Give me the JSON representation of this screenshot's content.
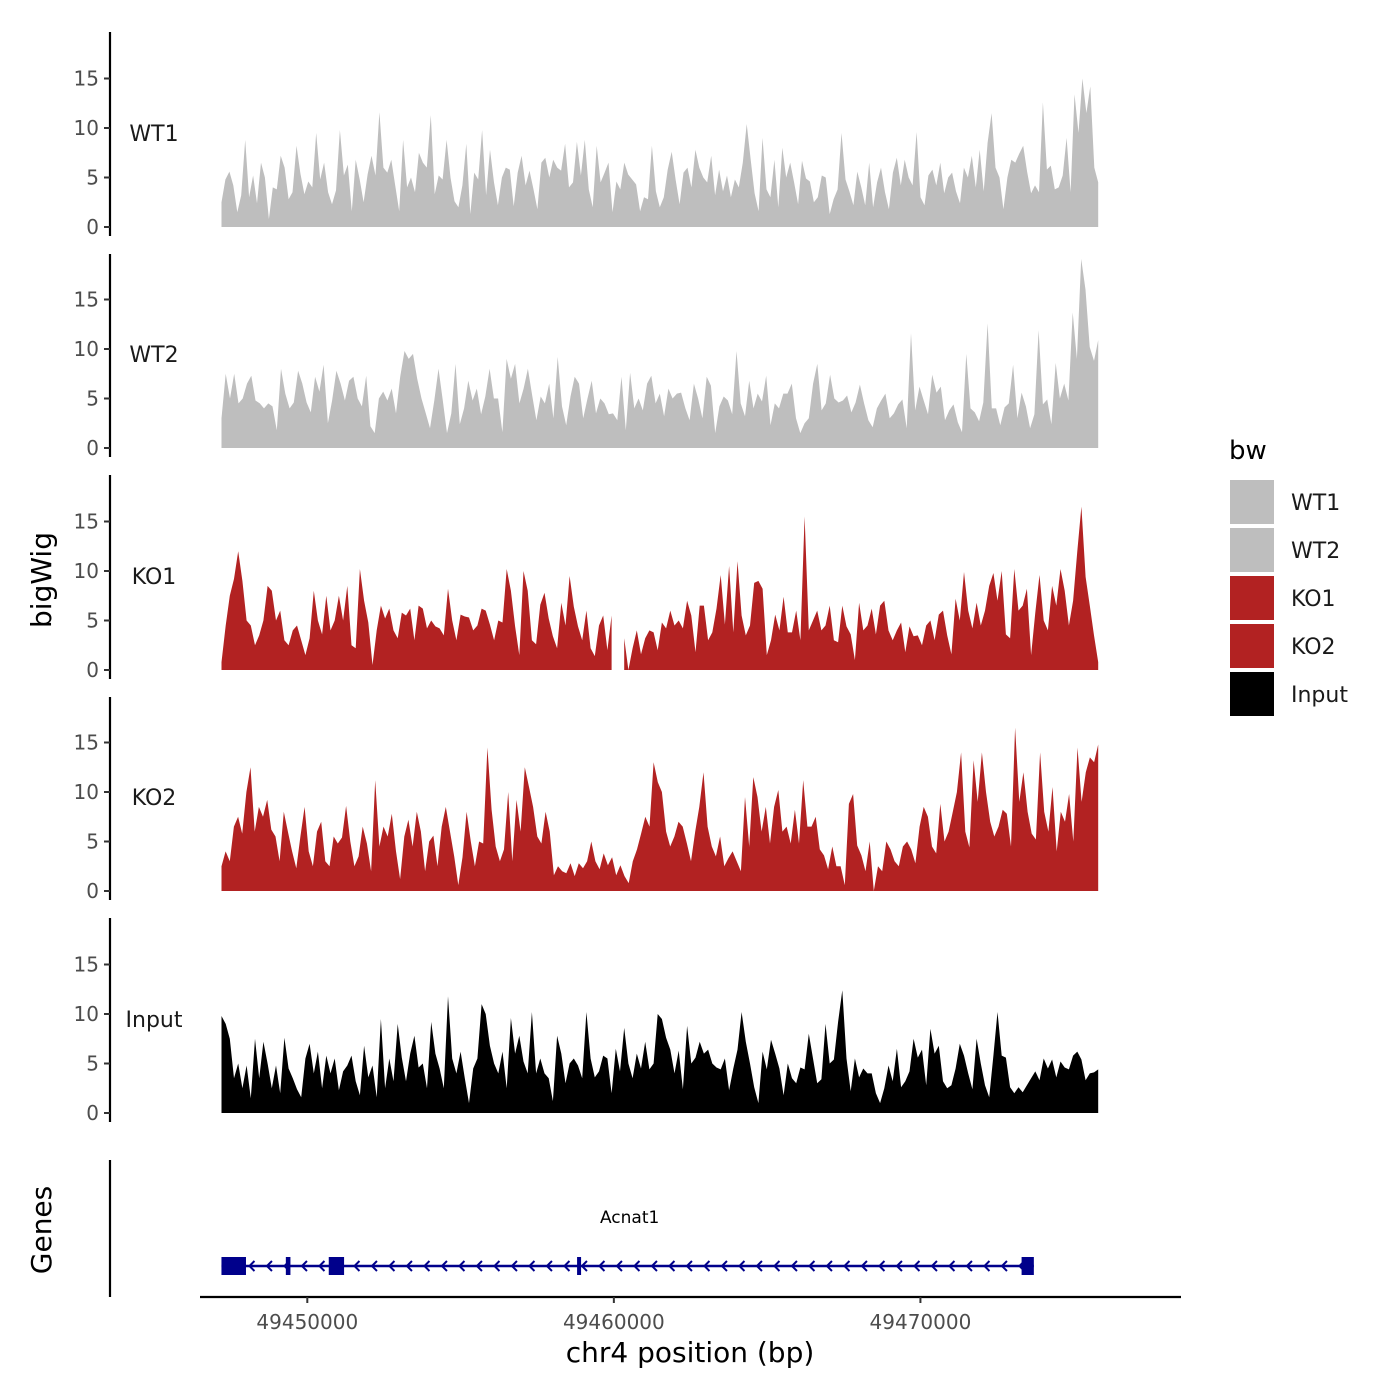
{
  "chart_data": {
    "type": "area",
    "title": "",
    "xlabel": "chr4 position (bp)",
    "ylabel": "bigWig",
    "xlim": [
      49446500,
      49478500
    ],
    "ylim": [
      0,
      20
    ],
    "x_ticks": [
      49450000,
      49460000,
      49470000
    ],
    "x_tick_labels": [
      "49450000",
      "49460000",
      "49470000"
    ],
    "y_ticks": [
      0,
      5,
      10,
      15
    ],
    "y_tick_labels": [
      "0",
      "5",
      "10",
      "15"
    ],
    "data_range": [
      49447200,
      49475800
    ],
    "grid": false,
    "legend": {
      "title": "bw",
      "position": "right",
      "entries": [
        {
          "label": "WT1",
          "color": "#BEBEBE"
        },
        {
          "label": "WT2",
          "color": "#BEBEBE"
        },
        {
          "label": "KO1",
          "color": "#B22222"
        },
        {
          "label": "KO2",
          "color": "#B22222"
        },
        {
          "label": "Input",
          "color": "#000000"
        }
      ]
    },
    "series": [
      {
        "name": "WT1",
        "color": "#BEBEBE",
        "gap": null,
        "values": [
          2.5,
          4.8,
          5.6,
          4.2,
          1.5,
          3.2,
          8.8,
          3.0,
          5.2,
          2.4,
          6.5,
          5.0,
          0.8,
          4.0,
          3.8,
          7.2,
          6.0,
          2.8,
          3.5,
          8.2,
          5.4,
          3.3,
          4.6,
          4.0,
          9.5,
          4.8,
          6.5,
          3.5,
          2.3,
          3.7,
          9.8,
          5.2,
          6.3,
          1.6,
          6.8,
          4.8,
          2.5,
          5.3,
          7.2,
          5.2,
          11.6,
          6.0,
          5.5,
          6.8,
          4.2,
          1.6,
          8.8,
          4.0,
          5.0,
          3.5,
          7.5,
          6.5,
          6.0,
          11.3,
          3.3,
          5.2,
          4.8,
          8.8,
          5.0,
          2.6,
          2.0,
          4.2,
          8.4,
          1.3,
          5.5,
          4.8,
          9.8,
          3.2,
          7.8,
          4.5,
          2.2,
          5.0,
          6.0,
          5.8,
          2.1,
          5.5,
          7.2,
          4.2,
          5.7,
          3.8,
          1.8,
          6.5,
          7.0,
          5.0,
          6.8,
          6.0,
          5.7,
          8.4,
          4.0,
          4.5,
          8.6,
          5.2,
          8.8,
          3.8,
          2.0,
          8.2,
          4.5,
          5.5,
          6.5,
          1.5,
          4.6,
          3.8,
          6.5,
          5.3,
          4.8,
          4.3,
          1.6,
          3.0,
          2.8,
          8.2,
          3.6,
          2.0,
          3.0,
          5.8,
          7.6,
          4.8,
          2.3,
          5.5,
          6.0,
          4.0,
          7.8,
          6.0,
          5.0,
          4.5,
          7.2,
          3.2,
          5.8,
          3.6,
          5.2,
          3.0,
          4.8,
          4.0,
          6.5,
          10.4,
          6.8,
          3.4,
          1.6,
          9.0,
          3.8,
          3.0,
          6.8,
          2.0,
          8.0,
          5.0,
          6.5,
          4.5,
          2.3,
          6.7,
          4.9,
          4.6,
          2.5,
          3.0,
          5.2,
          5.0,
          1.3,
          2.8,
          3.8,
          9.5,
          4.8,
          3.6,
          2.2,
          5.6,
          4.0,
          2.2,
          6.5,
          2.0,
          4.5,
          6.0,
          3.5,
          1.8,
          5.5,
          7.0,
          4.2,
          6.8,
          5.0,
          4.2,
          9.6,
          3.0,
          2.2,
          5.2,
          5.8,
          4.2,
          6.5,
          3.4,
          5.0,
          5.5,
          3.6,
          2.4,
          6.0,
          5.0,
          7.2,
          4.0,
          7.8,
          3.6,
          8.5,
          11.5,
          6.0,
          5.0,
          1.8,
          5.0,
          6.8,
          6.5,
          7.4,
          8.2,
          5.6,
          3.4,
          4.2,
          3.5,
          12.6,
          5.8,
          6.2,
          3.8,
          4.0,
          5.2,
          9.0,
          3.5,
          13.4,
          9.5,
          15.0,
          11.5,
          14.2,
          6.0,
          4.5
        ]
      },
      {
        "name": "WT2",
        "color": "#BEBEBE",
        "gap": null,
        "values": [
          3.0,
          7.5,
          5.0,
          7.5,
          4.5,
          5.0,
          6.5,
          7.3,
          4.8,
          4.5,
          4.0,
          4.5,
          4.2,
          1.8,
          8.0,
          5.5,
          4.0,
          4.6,
          7.8,
          6.5,
          4.6,
          3.6,
          7.2,
          5.7,
          8.4,
          2.5,
          4.8,
          7.8,
          6.5,
          4.8,
          6.8,
          7.2,
          5.0,
          4.2,
          7.3,
          2.2,
          1.5,
          5.0,
          5.7,
          4.8,
          6.0,
          3.5,
          7.2,
          9.8,
          9.0,
          9.5,
          7.0,
          5.0,
          3.5,
          2.0,
          4.8,
          8.0,
          4.8,
          1.5,
          3.5,
          8.5,
          2.4,
          4.0,
          6.8,
          4.8,
          6.0,
          3.4,
          5.2,
          8.0,
          5.0,
          5.0,
          1.6,
          9.0,
          7.0,
          8.5,
          4.5,
          6.0,
          8.0,
          5.3,
          2.8,
          5.2,
          4.5,
          6.5,
          3.0,
          9.2,
          4.2,
          2.3,
          5.2,
          7.2,
          6.5,
          3.0,
          5.0,
          6.8,
          3.5,
          5.0,
          4.5,
          3.4,
          3.5,
          2.8,
          7.2,
          1.8,
          7.6,
          4.0,
          5.0,
          3.8,
          6.5,
          7.3,
          4.5,
          5.5,
          3.2,
          6.0,
          5.0,
          5.5,
          5.6,
          4.0,
          2.8,
          6.5,
          5.0,
          3.0,
          7.2,
          6.3,
          1.5,
          4.2,
          5.2,
          4.8,
          3.4,
          9.8,
          4.5,
          3.2,
          6.8,
          4.0,
          5.5,
          4.7,
          7.3,
          2.3,
          4.5,
          4.0,
          5.5,
          5.5,
          6.5,
          3.0,
          1.5,
          2.5,
          3.0,
          6.5,
          8.5,
          3.8,
          4.5,
          7.4,
          5.0,
          4.6,
          4.8,
          5.3,
          3.6,
          4.6,
          6.4,
          4.5,
          2.8,
          2.1,
          4.0,
          4.8,
          5.5,
          3.0,
          3.5,
          4.4,
          4.9,
          2.0,
          11.6,
          3.8,
          6.2,
          4.8,
          3.4,
          7.4,
          5.6,
          6.2,
          2.8,
          3.8,
          4.4,
          2.6,
          1.6,
          9.5,
          4.0,
          3.6,
          2.7,
          4.6,
          12.6,
          4.0,
          4.0,
          2.3,
          4.1,
          4.5,
          8.4,
          3.0,
          5.6,
          4.2,
          2.0,
          3.4,
          11.9,
          4.4,
          4.9,
          2.4,
          8.6,
          5.0,
          6.5,
          4.8,
          13.7,
          9.0,
          19.1,
          16.0,
          10.2,
          8.8,
          10.9
        ]
      },
      {
        "name": "KO1",
        "color": "#B22222",
        "gap": [
          49460000,
          49460300
        ],
        "values": [
          0.8,
          4.5,
          7.5,
          9.2,
          12.0,
          9.0,
          5.0,
          4.5,
          2.5,
          3.5,
          5.0,
          8.5,
          8.0,
          5.0,
          6.0,
          3.0,
          2.5,
          4.0,
          4.5,
          3.0,
          1.5,
          3.2,
          8.0,
          5.0,
          3.6,
          7.5,
          4.0,
          5.0,
          7.5,
          5.0,
          8.5,
          2.5,
          2.2,
          10.2,
          7.0,
          4.8,
          0.5,
          4.0,
          6.5,
          5.2,
          6.2,
          4.0,
          3.2,
          5.8,
          5.5,
          6.2,
          3.0,
          6.5,
          6.2,
          4.2,
          5.0,
          4.4,
          4.2,
          3.5,
          8.2,
          5.0,
          3.0,
          5.6,
          5.4,
          5.3,
          4.0,
          4.5,
          6.2,
          6.0,
          4.6,
          3.0,
          5.0,
          4.8,
          10.2,
          8.0,
          4.4,
          1.5,
          10.0,
          8.0,
          3.0,
          2.6,
          6.6,
          7.8,
          5.2,
          3.4,
          2.2,
          6.8,
          4.5,
          9.5,
          6.4,
          4.4,
          3.0,
          6.0,
          2.2,
          1.4,
          4.5,
          5.5,
          2.0,
          5.5,
          3.6,
          4.0,
          3.2,
          0.0,
          2.2,
          4.0,
          1.6,
          3.2,
          4.0,
          3.8,
          2.0,
          4.8,
          4.2,
          6.0,
          4.5,
          5.0,
          4.2,
          7.0,
          5.5,
          1.8,
          6.5,
          6.5,
          3.0,
          3.8,
          6.2,
          9.6,
          4.6,
          10.5,
          3.8,
          11.0,
          5.5,
          3.5,
          4.5,
          8.8,
          9.0,
          8.2,
          1.5,
          3.0,
          5.6,
          4.0,
          7.4,
          3.8,
          3.8,
          6.0,
          3.0,
          15.5,
          4.0,
          5.0,
          6.0,
          4.0,
          4.5,
          6.5,
          3.0,
          2.8,
          6.5,
          4.4,
          3.6,
          1.0,
          6.8,
          4.0,
          4.5,
          6.2,
          3.6,
          6.5,
          7.0,
          4.0,
          3.0,
          4.0,
          4.8,
          1.8,
          4.4,
          3.4,
          3.5,
          2.5,
          4.5,
          5.0,
          3.0,
          5.6,
          6.0,
          3.5,
          1.6,
          7.2,
          5.0,
          9.9,
          6.0,
          4.2,
          6.8,
          4.5,
          6.0,
          8.5,
          9.8,
          7.0,
          10.0,
          3.6,
          3.2,
          10.2,
          6.0,
          6.5,
          8.2,
          1.5,
          5.8,
          9.6,
          5.0,
          4.0,
          8.5,
          6.5,
          10.2,
          8.0,
          4.5,
          7.0,
          12.0,
          16.5,
          9.4,
          6.5,
          3.5,
          0.8
        ]
      },
      {
        "name": "KO2",
        "color": "#B22222",
        "gap": null,
        "values": [
          2.5,
          4.0,
          3.0,
          6.5,
          7.5,
          5.8,
          10.0,
          12.5,
          6.0,
          8.5,
          7.5,
          9.2,
          6.2,
          5.5,
          3.0,
          8.0,
          6.0,
          4.0,
          2.3,
          5.5,
          8.5,
          4.0,
          2.5,
          6.0,
          7.0,
          3.0,
          2.5,
          5.5,
          4.8,
          5.4,
          8.6,
          5.0,
          2.5,
          3.5,
          6.5,
          4.8,
          2.0,
          11.2,
          4.5,
          6.5,
          5.5,
          7.8,
          4.0,
          1.2,
          5.5,
          7.2,
          4.5,
          8.0,
          6.0,
          2.0,
          5.0,
          5.6,
          2.5,
          6.5,
          8.5,
          6.0,
          3.5,
          0.6,
          3.4,
          8.0,
          5.0,
          2.5,
          5.0,
          4.8,
          14.5,
          8.2,
          4.5,
          3.0,
          4.2,
          10.0,
          3.0,
          9.2,
          6.0,
          12.5,
          10.5,
          8.5,
          5.5,
          4.8,
          8.0,
          6.0,
          1.6,
          2.5,
          2.0,
          1.8,
          2.8,
          1.5,
          2.8,
          2.3,
          3.0,
          5.0,
          3.0,
          2.2,
          3.8,
          2.6,
          3.4,
          1.6,
          2.6,
          1.5,
          0.8,
          3.0,
          4.2,
          5.8,
          7.5,
          6.5,
          13.0,
          11.0,
          10.0,
          6.0,
          4.5,
          5.5,
          7.0,
          6.5,
          4.8,
          3.0,
          6.0,
          8.5,
          12.0,
          6.5,
          4.5,
          3.5,
          5.5,
          2.5,
          3.3,
          4.0,
          3.0,
          2.0,
          9.5,
          4.5,
          11.5,
          9.5,
          6.0,
          8.5,
          4.8,
          8.5,
          10.2,
          6.0,
          6.5,
          4.8,
          8.2,
          4.8,
          11.2,
          6.5,
          6.5,
          7.5,
          4.2,
          3.6,
          2.2,
          4.5,
          2.5,
          2.5,
          0.6,
          8.8,
          9.8,
          4.6,
          3.6,
          2.0,
          5.0,
          0.0,
          2.5,
          2.0,
          5.0,
          4.2,
          3.0,
          2.5,
          4.5,
          5.0,
          4.2,
          2.8,
          6.5,
          8.5,
          7.5,
          4.5,
          3.8,
          8.8,
          5.0,
          6.0,
          8.0,
          10.0,
          14.0,
          6.0,
          4.4,
          13.2,
          9.0,
          14.0,
          10.0,
          7.0,
          5.5,
          6.5,
          8.2,
          7.8,
          4.5,
          16.5,
          9.0,
          12.0,
          8.0,
          5.8,
          5.2,
          14.0,
          8.0,
          6.0,
          10.5,
          4.0,
          8.0,
          7.0,
          9.8,
          5.0,
          14.5,
          9.0,
          12.0,
          13.5,
          13.0,
          14.8
        ]
      },
      {
        "name": "Input",
        "color": "#000000",
        "gap": null,
        "values": [
          9.8,
          9.0,
          7.5,
          3.5,
          5.0,
          2.5,
          4.8,
          1.5,
          7.5,
          3.5,
          7.2,
          5.0,
          2.5,
          4.8,
          2.0,
          7.6,
          4.5,
          3.5,
          2.4,
          1.6,
          5.5,
          7.0,
          4.0,
          6.2,
          2.5,
          5.8,
          4.0,
          5.5,
          2.3,
          4.2,
          4.8,
          5.8,
          3.2,
          1.8,
          6.8,
          3.6,
          4.8,
          1.6,
          9.5,
          2.5,
          5.5,
          3.2,
          9.0,
          5.6,
          3.2,
          6.0,
          7.8,
          4.6,
          5.0,
          2.5,
          9.2,
          6.0,
          4.5,
          2.5,
          11.8,
          5.5,
          4.0,
          6.2,
          3.5,
          1.0,
          4.5,
          5.5,
          11.0,
          10.0,
          6.8,
          5.0,
          4.0,
          6.2,
          2.5,
          9.6,
          6.0,
          7.8,
          5.2,
          4.0,
          10.2,
          4.0,
          5.5,
          4.0,
          3.5,
          1.2,
          7.8,
          6.0,
          3.0,
          5.0,
          5.5,
          4.8,
          3.5,
          10.2,
          5.5,
          3.6,
          4.2,
          5.8,
          5.5,
          2.0,
          6.5,
          4.2,
          8.6,
          5.0,
          3.5,
          6.0,
          4.5,
          7.2,
          4.4,
          5.0,
          10.0,
          9.5,
          7.6,
          6.4,
          4.0,
          6.3,
          2.4,
          8.8,
          5.0,
          5.6,
          7.2,
          6.0,
          6.4,
          5.0,
          4.6,
          4.4,
          5.5,
          2.3,
          4.5,
          6.4,
          10.2,
          7.2,
          5.0,
          2.6,
          1.0,
          6.2,
          4.4,
          7.4,
          6.0,
          4.5,
          1.8,
          5.0,
          3.5,
          3.0,
          4.6,
          4.4,
          8.0,
          5.5,
          3.0,
          3.4,
          9.0,
          5.0,
          5.4,
          9.2,
          12.4,
          5.5,
          2.2,
          5.5,
          3.6,
          4.5,
          4.0,
          4.0,
          2.0,
          1.0,
          2.5,
          4.8,
          3.2,
          6.5,
          2.6,
          3.2,
          4.2,
          7.5,
          5.6,
          6.4,
          2.8,
          8.5,
          6.0,
          6.8,
          3.2,
          2.5,
          2.8,
          4.5,
          7.0,
          5.8,
          4.0,
          2.4,
          7.5,
          5.0,
          2.8,
          1.6,
          5.8,
          10.2,
          5.8,
          5.6,
          2.6,
          2.0,
          2.6,
          2.1,
          2.8,
          3.5,
          4.2,
          3.3,
          5.5,
          4.5,
          5.4,
          3.6,
          5.2,
          4.6,
          4.4,
          5.8,
          6.2,
          5.4,
          3.3,
          4.0,
          4.1,
          4.4
        ]
      }
    ],
    "genes": [
      {
        "name": "Acnat1",
        "start": 49447200,
        "end": 49473700,
        "strand": "-",
        "exons": [
          [
            49447200,
            49448000
          ],
          [
            49449300,
            49449450
          ],
          [
            49450700,
            49451200
          ],
          [
            49458800,
            49458900
          ],
          [
            49473300,
            49473700
          ]
        ]
      }
    ],
    "gene_track_label": "Genes",
    "colors": {
      "axis": "#000000",
      "tick_text": "#4d4d4d",
      "gene": "#00008B"
    }
  }
}
